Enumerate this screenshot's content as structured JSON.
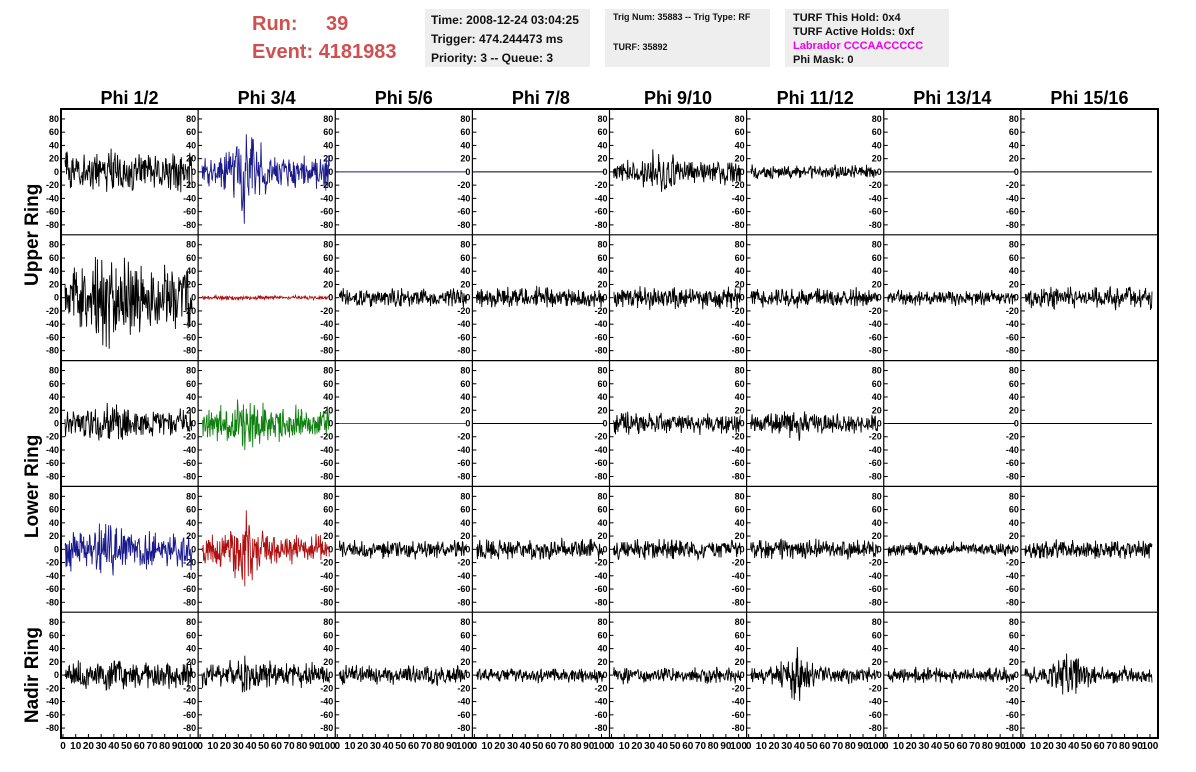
{
  "header": {
    "run_label": "Run:",
    "run_value": "39",
    "event_label": "Event:",
    "event_value": "4181983",
    "time": "Time: 2008-12-24 03:04:25",
    "trigger": "Trigger: 474.244473 ms",
    "priority": "Priority: 3 -- Queue: 3",
    "trig_num": "Trig Num: 35883 -- Trig Type: RF",
    "turf": "TURF: 35892",
    "turf_this_hold": "TURF This Hold: 0x4",
    "turf_active_holds": "TURF Active Holds: 0xf",
    "labrador": "Labrador CCCAACCCCC",
    "phi_mask": "Phi Mask: 0"
  },
  "chart_data": {
    "type": "line",
    "columns": [
      "Phi 1/2",
      "Phi 3/4",
      "Phi 5/6",
      "Phi 7/8",
      "Phi 9/10",
      "Phi 11/12",
      "Phi 13/14",
      "Phi 15/16"
    ],
    "row_groups": [
      "Upper Ring",
      "Lower Ring",
      "Nadir Ring"
    ],
    "y_ticks": [
      80,
      60,
      40,
      20,
      0,
      -20,
      -40,
      -60,
      -80
    ],
    "ylim": [
      -95,
      95
    ],
    "x_ticks": [
      0,
      10,
      20,
      30,
      40,
      50,
      60,
      70,
      80,
      90,
      100
    ],
    "x_tick_labels": [
      "0",
      "10",
      "20",
      "30",
      "40",
      "50",
      "60",
      "70",
      "80",
      "90",
      "100"
    ],
    "xlim": [
      0,
      100
    ],
    "colors": {
      "black": "#000000",
      "blue": "#1a1a8c",
      "red": "#b01010",
      "green": "#108010"
    },
    "panels": [
      [
        {
          "color": "black",
          "amplitude": 30,
          "burst": 0,
          "flat": false
        },
        {
          "color": "blue",
          "amplitude": 24,
          "burst": 45,
          "flat": false
        },
        {
          "color": "blue",
          "amplitude": 0,
          "burst": 0,
          "flat": true
        },
        {
          "color": "black",
          "amplitude": 0,
          "burst": 0,
          "flat": true
        },
        {
          "color": "black",
          "amplitude": 18,
          "burst": 15,
          "flat": false
        },
        {
          "color": "black",
          "amplitude": 10,
          "burst": 0,
          "flat": false
        },
        {
          "color": "black",
          "amplitude": 0,
          "burst": 0,
          "flat": true
        },
        {
          "color": "black",
          "amplitude": 0,
          "burst": 0,
          "flat": true
        }
      ],
      [
        {
          "color": "black",
          "amplitude": 48,
          "burst": 20,
          "flat": false
        },
        {
          "color": "red",
          "amplitude": 3,
          "burst": 0,
          "flat": false
        },
        {
          "color": "black",
          "amplitude": 14,
          "burst": 0,
          "flat": false
        },
        {
          "color": "black",
          "amplitude": 16,
          "burst": 0,
          "flat": false
        },
        {
          "color": "black",
          "amplitude": 16,
          "burst": 0,
          "flat": false
        },
        {
          "color": "black",
          "amplitude": 14,
          "burst": 0,
          "flat": false
        },
        {
          "color": "black",
          "amplitude": 11,
          "burst": 0,
          "flat": false
        },
        {
          "color": "black",
          "amplitude": 16,
          "burst": 0,
          "flat": false
        }
      ],
      [
        {
          "color": "black",
          "amplitude": 22,
          "burst": 8,
          "flat": false
        },
        {
          "color": "green",
          "amplitude": 25,
          "burst": 15,
          "flat": false
        },
        {
          "color": "green",
          "amplitude": 0,
          "burst": 0,
          "flat": true
        },
        {
          "color": "black",
          "amplitude": 0,
          "burst": 0,
          "flat": true
        },
        {
          "color": "black",
          "amplitude": 16,
          "burst": 0,
          "flat": false
        },
        {
          "color": "black",
          "amplitude": 14,
          "burst": 10,
          "flat": false
        },
        {
          "color": "black",
          "amplitude": 0,
          "burst": 0,
          "flat": true
        },
        {
          "color": "black",
          "amplitude": 0,
          "burst": 0,
          "flat": true
        }
      ],
      [
        {
          "color": "blue",
          "amplitude": 30,
          "burst": 10,
          "flat": false
        },
        {
          "color": "red",
          "amplitude": 22,
          "burst": 30,
          "flat": false
        },
        {
          "color": "black",
          "amplitude": 14,
          "burst": 0,
          "flat": false
        },
        {
          "color": "black",
          "amplitude": 15,
          "burst": 0,
          "flat": false
        },
        {
          "color": "black",
          "amplitude": 15,
          "burst": 0,
          "flat": false
        },
        {
          "color": "black",
          "amplitude": 14,
          "burst": 0,
          "flat": false
        },
        {
          "color": "black",
          "amplitude": 10,
          "burst": 0,
          "flat": false
        },
        {
          "color": "black",
          "amplitude": 14,
          "burst": 0,
          "flat": false
        }
      ],
      [
        {
          "color": "black",
          "amplitude": 20,
          "burst": 8,
          "flat": false
        },
        {
          "color": "black",
          "amplitude": 18,
          "burst": 10,
          "flat": false
        },
        {
          "color": "black",
          "amplitude": 14,
          "burst": 0,
          "flat": false
        },
        {
          "color": "black",
          "amplitude": 11,
          "burst": 0,
          "flat": false
        },
        {
          "color": "black",
          "amplitude": 12,
          "burst": 0,
          "flat": false
        },
        {
          "color": "black",
          "amplitude": 12,
          "burst": 30,
          "flat": false
        },
        {
          "color": "black",
          "amplitude": 11,
          "burst": 0,
          "flat": false
        },
        {
          "color": "black",
          "amplitude": 13,
          "burst": 25,
          "flat": false
        }
      ]
    ]
  }
}
